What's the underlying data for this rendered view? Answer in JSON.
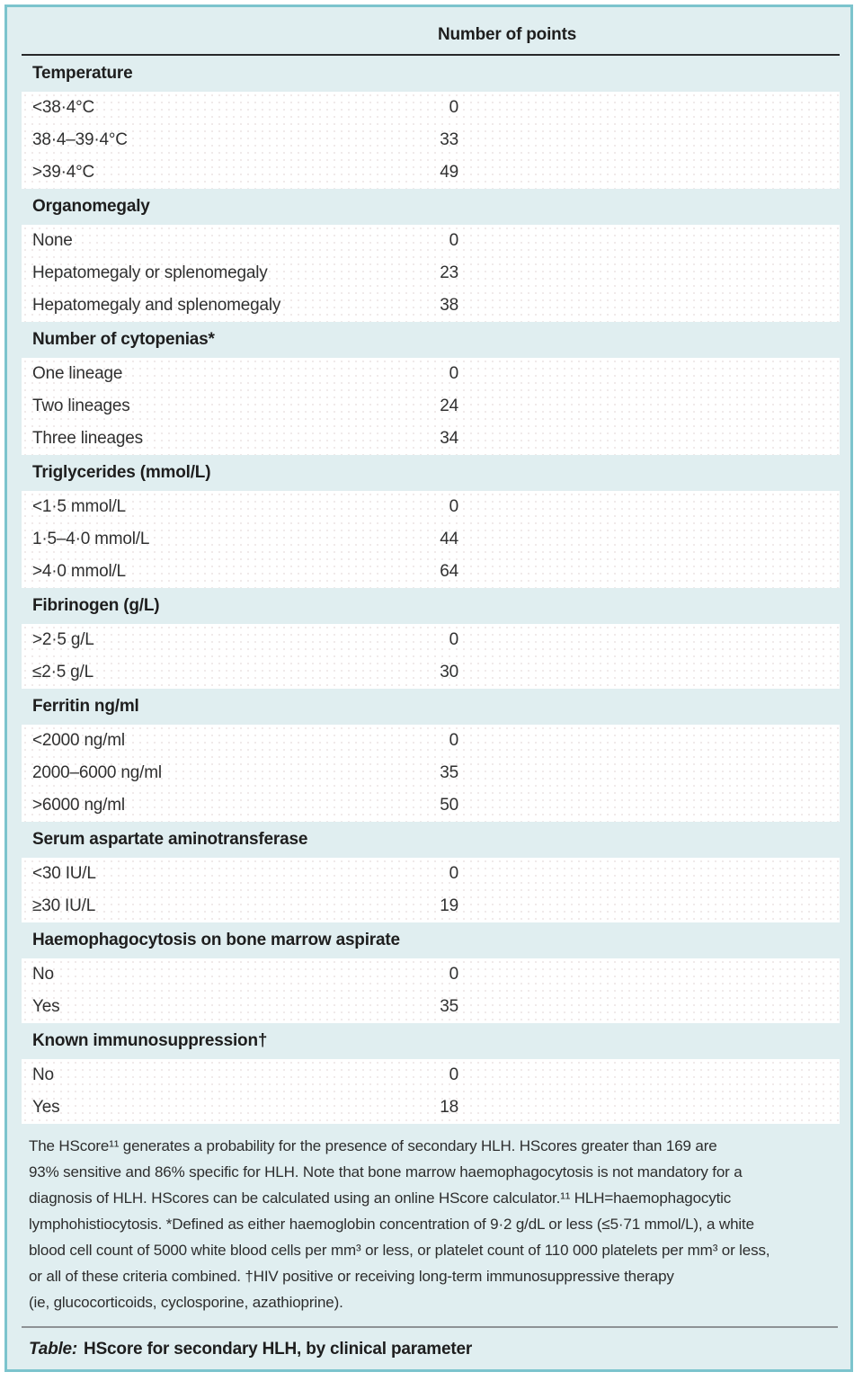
{
  "colors": {
    "border": "#7cc4cd",
    "background": "#e0eef0",
    "rule_dark": "#27282a",
    "rule_grey": "#8e9295",
    "text": "#1e1e1e"
  },
  "table": {
    "points_header": "Number of points",
    "sections": [
      {
        "label": "Temperature",
        "rows": [
          {
            "label": "<38·4°C",
            "points": "0"
          },
          {
            "label": "38·4–39·4°C",
            "points": "33"
          },
          {
            "label": ">39·4°C",
            "points": "49"
          }
        ]
      },
      {
        "label": "Organomegaly",
        "rows": [
          {
            "label": "None",
            "points": "0"
          },
          {
            "label": "Hepatomegaly or splenomegaly",
            "points": "23"
          },
          {
            "label": "Hepatomegaly and splenomegaly",
            "points": "38"
          }
        ]
      },
      {
        "label": "Number of cytopenias*",
        "rows": [
          {
            "label": "One lineage",
            "points": "0"
          },
          {
            "label": "Two lineages",
            "points": "24"
          },
          {
            "label": "Three lineages",
            "points": "34"
          }
        ]
      },
      {
        "label": "Triglycerides (mmol/L)",
        "rows": [
          {
            "label": "<1·5 mmol/L",
            "points": "0"
          },
          {
            "label": "1·5–4·0 mmol/L",
            "points": "44"
          },
          {
            "label": ">4·0 mmol/L",
            "points": "64"
          }
        ]
      },
      {
        "label": "Fibrinogen (g/L)",
        "rows": [
          {
            "label": ">2·5 g/L",
            "points": "0"
          },
          {
            "label": "≤2·5 g/L",
            "points": "30"
          }
        ]
      },
      {
        "label": "Ferritin ng/ml",
        "rows": [
          {
            "label": "<2000 ng/ml",
            "points": "0"
          },
          {
            "label": "2000–6000 ng/ml",
            "points": "35"
          },
          {
            "label": ">6000 ng/ml",
            "points": "50"
          }
        ]
      },
      {
        "label": "Serum aspartate aminotransferase",
        "rows": [
          {
            "label": "<30 IU/L",
            "points": "0"
          },
          {
            "label": "≥30 IU/L",
            "points": "19"
          }
        ]
      },
      {
        "label": "Haemophagocytosis on bone marrow aspirate",
        "rows": [
          {
            "label": "No",
            "points": "0"
          },
          {
            "label": "Yes",
            "points": "35"
          }
        ]
      },
      {
        "label": "Known immunosuppression†",
        "rows": [
          {
            "label": "No",
            "points": "0"
          },
          {
            "label": "Yes",
            "points": "18"
          }
        ]
      }
    ]
  },
  "footnote": {
    "lines": [
      "The HScore¹¹ generates a probability for the presence of secondary HLH. HScores greater than 169 are",
      "93% sensitive and 86% specific for HLH. Note that bone marrow haemophagocytosis is not mandatory for a",
      "diagnosis of HLH. HScores can be calculated using an online HScore calculator.¹¹ HLH=haemophagocytic",
      "lymphohistiocytosis. *Defined as either haemoglobin concentration of 9·2 g/dL or less (≤5·71 mmol/L), a white",
      "blood cell count of 5000 white blood cells per mm³ or less, or platelet count of 110 000 platelets per mm³ or less,",
      "or all of these criteria combined. †HIV positive or receiving long-term immunosuppressive therapy",
      "(ie, glucocorticoids, cyclosporine, azathioprine)."
    ]
  },
  "caption": {
    "prefix": "Table:",
    "text": "HScore for secondary HLH, by clinical parameter"
  }
}
